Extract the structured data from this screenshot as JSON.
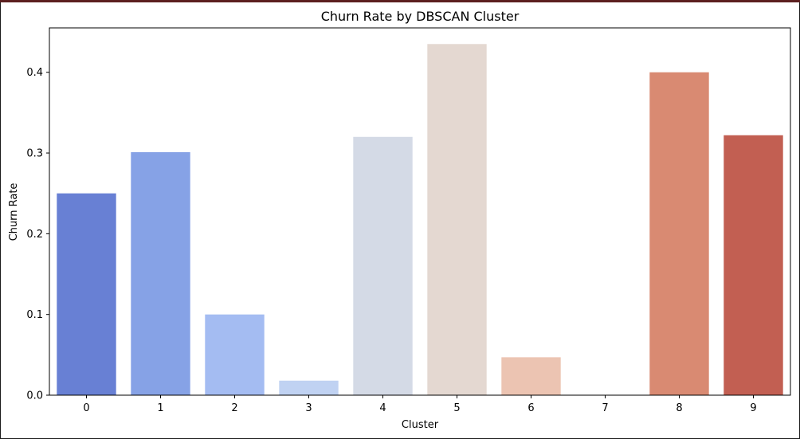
{
  "chart_data": {
    "type": "bar",
    "title": "Churn Rate by DBSCAN Cluster",
    "xlabel": "Cluster",
    "ylabel": "Churn Rate",
    "categories": [
      "0",
      "1",
      "2",
      "3",
      "4",
      "5",
      "6",
      "7",
      "8",
      "9"
    ],
    "values": [
      0.25,
      0.301,
      0.1,
      0.018,
      0.32,
      0.435,
      0.047,
      0.0,
      0.4,
      0.322
    ],
    "colors": [
      "#6880d4",
      "#86a2e6",
      "#a4bcf2",
      "#c0d2f2",
      "#d4dae6",
      "#e4d8d1",
      "#ecc4b2",
      "#e8a890",
      "#d98a72",
      "#c25f52"
    ],
    "ylim": [
      0,
      0.455
    ],
    "yticks": [
      0.0,
      0.1,
      0.2,
      0.3,
      0.4
    ],
    "ytick_labels": [
      "0.0",
      "0.1",
      "0.2",
      "0.3",
      "0.4"
    ],
    "grid": false,
    "legend": "none"
  }
}
